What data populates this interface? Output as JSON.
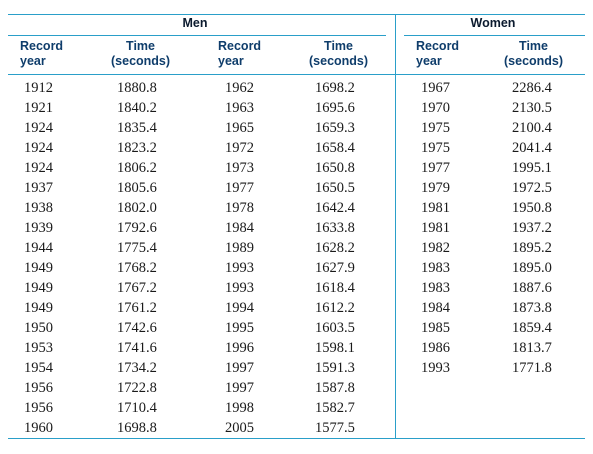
{
  "groups": {
    "men": "Men",
    "women": "Women"
  },
  "headers": {
    "record_year": [
      "Record",
      "year"
    ],
    "time_seconds": [
      "Time",
      "(seconds)"
    ]
  },
  "men_left": [
    [
      "1912",
      "1880.8"
    ],
    [
      "1921",
      "1840.2"
    ],
    [
      "1924",
      "1835.4"
    ],
    [
      "1924",
      "1823.2"
    ],
    [
      "1924",
      "1806.2"
    ],
    [
      "1937",
      "1805.6"
    ],
    [
      "1938",
      "1802.0"
    ],
    [
      "1939",
      "1792.6"
    ],
    [
      "1944",
      "1775.4"
    ],
    [
      "1949",
      "1768.2"
    ],
    [
      "1949",
      "1767.2"
    ],
    [
      "1949",
      "1761.2"
    ],
    [
      "1950",
      "1742.6"
    ],
    [
      "1953",
      "1741.6"
    ],
    [
      "1954",
      "1734.2"
    ],
    [
      "1956",
      "1722.8"
    ],
    [
      "1956",
      "1710.4"
    ],
    [
      "1960",
      "1698.8"
    ]
  ],
  "men_right": [
    [
      "1962",
      "1698.2"
    ],
    [
      "1963",
      "1695.6"
    ],
    [
      "1965",
      "1659.3"
    ],
    [
      "1972",
      "1658.4"
    ],
    [
      "1973",
      "1650.8"
    ],
    [
      "1977",
      "1650.5"
    ],
    [
      "1978",
      "1642.4"
    ],
    [
      "1984",
      "1633.8"
    ],
    [
      "1989",
      "1628.2"
    ],
    [
      "1993",
      "1627.9"
    ],
    [
      "1993",
      "1618.4"
    ],
    [
      "1994",
      "1612.2"
    ],
    [
      "1995",
      "1603.5"
    ],
    [
      "1996",
      "1598.1"
    ],
    [
      "1997",
      "1591.3"
    ],
    [
      "1997",
      "1587.8"
    ],
    [
      "1998",
      "1582.7"
    ],
    [
      "2005",
      "1577.5"
    ]
  ],
  "women": [
    [
      "1967",
      "2286.4"
    ],
    [
      "1970",
      "2130.5"
    ],
    [
      "1975",
      "2100.4"
    ],
    [
      "1975",
      "2041.4"
    ],
    [
      "1977",
      "1995.1"
    ],
    [
      "1979",
      "1972.5"
    ],
    [
      "1981",
      "1950.8"
    ],
    [
      "1981",
      "1937.2"
    ],
    [
      "1982",
      "1895.2"
    ],
    [
      "1983",
      "1895.0"
    ],
    [
      "1983",
      "1887.6"
    ],
    [
      "1984",
      "1873.8"
    ],
    [
      "1985",
      "1859.4"
    ],
    [
      "1986",
      "1813.7"
    ],
    [
      "1993",
      "1771.8"
    ]
  ]
}
